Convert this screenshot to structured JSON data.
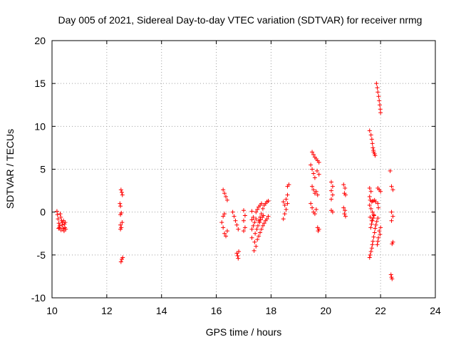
{
  "chart_data": {
    "type": "scatter",
    "title": "Day 005 of 2021, Sidereal Day-to-day VTEC variation (SDTVAR) for receiver nrmg",
    "xlabel": "GPS time / hours",
    "ylabel": "SDTVAR / TECUs",
    "xlim": [
      10,
      24
    ],
    "ylim": [
      -10,
      20
    ],
    "xticks": [
      "10",
      "12",
      "14",
      "16",
      "18",
      "20",
      "22",
      "24"
    ],
    "yticks": [
      "-10",
      "-5",
      "0",
      "5",
      "10",
      "15",
      "20"
    ],
    "grid": true,
    "marker": "+",
    "marker_color": "#ff0000",
    "series": [
      {
        "name": "SDTVAR",
        "points": [
          [
            10.18,
            0.1
          ],
          [
            10.2,
            -0.3
          ],
          [
            10.22,
            -0.8
          ],
          [
            10.25,
            -1.3
          ],
          [
            10.27,
            -1.8
          ],
          [
            10.3,
            -0.2
          ],
          [
            10.32,
            -0.6
          ],
          [
            10.35,
            -1.0
          ],
          [
            10.37,
            -1.5
          ],
          [
            10.4,
            -1.9
          ],
          [
            10.42,
            -1.0
          ],
          [
            10.45,
            -1.4
          ],
          [
            10.47,
            -1.8
          ],
          [
            10.5,
            -2.0
          ],
          [
            10.38,
            -1.2
          ],
          [
            10.28,
            -1.6
          ],
          [
            10.33,
            -2.1
          ],
          [
            10.24,
            -1.9
          ],
          [
            10.44,
            -2.2
          ],
          [
            10.48,
            -1.2
          ],
          [
            12.48,
            1.0
          ],
          [
            12.5,
            0.7
          ],
          [
            12.52,
            2.6
          ],
          [
            12.55,
            2.3
          ],
          [
            12.57,
            2.0
          ],
          [
            12.5,
            -0.3
          ],
          [
            12.53,
            -0.1
          ],
          [
            12.5,
            -1.5
          ],
          [
            12.53,
            -1.8
          ],
          [
            12.56,
            -1.2
          ],
          [
            12.5,
            -2.0
          ],
          [
            12.52,
            -5.8
          ],
          [
            12.55,
            -5.5
          ],
          [
            12.58,
            -5.3
          ],
          [
            16.25,
            2.6
          ],
          [
            16.3,
            2.2
          ],
          [
            16.35,
            1.8
          ],
          [
            16.4,
            1.4
          ],
          [
            16.2,
            -1.2
          ],
          [
            16.25,
            -1.8
          ],
          [
            16.3,
            -2.5
          ],
          [
            16.35,
            -2.8
          ],
          [
            16.4,
            -2.2
          ],
          [
            16.25,
            -0.5
          ],
          [
            16.3,
            -0.2
          ],
          [
            16.6,
            0.0
          ],
          [
            16.65,
            -0.5
          ],
          [
            16.7,
            -1.0
          ],
          [
            16.75,
            -1.5
          ],
          [
            16.8,
            -2.0
          ],
          [
            16.75,
            -4.8
          ],
          [
            16.78,
            -5.1
          ],
          [
            16.8,
            -5.4
          ],
          [
            16.82,
            -4.6
          ],
          [
            17.0,
            0.2
          ],
          [
            17.05,
            -0.4
          ],
          [
            17.0,
            -1.0
          ],
          [
            17.05,
            -1.8
          ],
          [
            17.0,
            -2.2
          ],
          [
            17.3,
            0.1
          ],
          [
            17.35,
            -0.6
          ],
          [
            17.3,
            -0.9
          ],
          [
            17.35,
            -1.6
          ],
          [
            17.3,
            -2.0
          ],
          [
            17.3,
            -3.0
          ],
          [
            17.4,
            -3.5
          ],
          [
            17.45,
            -4.0
          ],
          [
            17.5,
            -3.2
          ],
          [
            17.55,
            -2.8
          ],
          [
            17.6,
            -2.4
          ],
          [
            17.65,
            -2.0
          ],
          [
            17.7,
            -1.6
          ],
          [
            17.75,
            -1.3
          ],
          [
            17.8,
            -1.0
          ],
          [
            17.85,
            -0.8
          ],
          [
            17.9,
            -0.5
          ],
          [
            17.38,
            -4.5
          ],
          [
            17.42,
            -2.5
          ],
          [
            17.48,
            -2.0
          ],
          [
            17.52,
            -1.6
          ],
          [
            17.58,
            -1.2
          ],
          [
            17.62,
            -0.9
          ],
          [
            17.68,
            -0.6
          ],
          [
            17.72,
            -0.4
          ],
          [
            17.45,
            0.0
          ],
          [
            17.5,
            0.3
          ],
          [
            17.55,
            0.6
          ],
          [
            17.6,
            0.8
          ],
          [
            17.65,
            1.0
          ],
          [
            17.7,
            0.4
          ],
          [
            17.75,
            0.8
          ],
          [
            17.8,
            1.0
          ],
          [
            17.85,
            1.2
          ],
          [
            17.9,
            1.3
          ],
          [
            17.55,
            -1.0
          ],
          [
            17.6,
            -0.6
          ],
          [
            17.65,
            -0.2
          ],
          [
            17.4,
            -1.2
          ],
          [
            17.45,
            -0.8
          ],
          [
            18.45,
            1.2
          ],
          [
            18.5,
            0.8
          ],
          [
            18.55,
            1.5
          ],
          [
            18.6,
            2.0
          ],
          [
            18.5,
            -0.2
          ],
          [
            18.55,
            0.3
          ],
          [
            18.6,
            3.0
          ],
          [
            18.65,
            3.2
          ],
          [
            18.45,
            -0.8
          ],
          [
            18.6,
            1.0
          ],
          [
            19.45,
            5.5
          ],
          [
            19.5,
            5.0
          ],
          [
            19.55,
            4.5
          ],
          [
            19.6,
            4.0
          ],
          [
            19.5,
            7.0
          ],
          [
            19.55,
            6.7
          ],
          [
            19.6,
            6.4
          ],
          [
            19.65,
            6.2
          ],
          [
            19.7,
            6.0
          ],
          [
            19.75,
            5.8
          ],
          [
            19.5,
            3.0
          ],
          [
            19.55,
            2.6
          ],
          [
            19.6,
            2.2
          ],
          [
            19.65,
            2.4
          ],
          [
            19.7,
            2.0
          ],
          [
            19.45,
            1.0
          ],
          [
            19.5,
            0.5
          ],
          [
            19.55,
            0.0
          ],
          [
            19.6,
            -0.2
          ],
          [
            19.65,
            0.3
          ],
          [
            19.7,
            -1.8
          ],
          [
            19.75,
            -2.0
          ],
          [
            19.72,
            -2.2
          ],
          [
            19.68,
            4.8
          ],
          [
            19.75,
            4.4
          ],
          [
            20.2,
            3.5
          ],
          [
            20.25,
            3.0
          ],
          [
            20.2,
            2.5
          ],
          [
            20.25,
            2.0
          ],
          [
            20.2,
            1.5
          ],
          [
            20.2,
            0.2
          ],
          [
            20.25,
            0.0
          ],
          [
            20.65,
            3.2
          ],
          [
            20.7,
            2.8
          ],
          [
            20.68,
            2.2
          ],
          [
            20.72,
            2.0
          ],
          [
            20.65,
            0.5
          ],
          [
            20.7,
            0.2
          ],
          [
            20.68,
            -0.2
          ],
          [
            20.72,
            -0.5
          ],
          [
            21.6,
            9.5
          ],
          [
            21.65,
            9.0
          ],
          [
            21.68,
            8.5
          ],
          [
            21.7,
            8.0
          ],
          [
            21.72,
            7.5
          ],
          [
            21.75,
            7.0
          ],
          [
            21.78,
            6.8
          ],
          [
            21.8,
            6.6
          ],
          [
            21.74,
            7.2
          ],
          [
            21.6,
            2.8
          ],
          [
            21.65,
            2.4
          ],
          [
            21.6,
            1.8
          ],
          [
            21.62,
            1.4
          ],
          [
            21.68,
            1.2
          ],
          [
            21.72,
            1.3
          ],
          [
            21.78,
            1.4
          ],
          [
            21.82,
            1.2
          ],
          [
            21.6,
            0.8
          ],
          [
            21.65,
            0.4
          ],
          [
            21.7,
            0.0
          ],
          [
            21.75,
            -0.3
          ],
          [
            21.62,
            -0.6
          ],
          [
            21.68,
            -1.0
          ],
          [
            21.6,
            -5.3
          ],
          [
            21.62,
            -5.0
          ],
          [
            21.65,
            -4.6
          ],
          [
            21.68,
            -4.2
          ],
          [
            21.7,
            -3.8
          ],
          [
            21.72,
            -3.4
          ],
          [
            21.75,
            -2.9
          ],
          [
            21.78,
            -2.4
          ],
          [
            21.8,
            -1.9
          ],
          [
            21.83,
            -1.5
          ],
          [
            21.86,
            -1.1
          ],
          [
            21.9,
            -0.7
          ],
          [
            21.64,
            -1.8
          ],
          [
            21.67,
            -1.4
          ],
          [
            21.7,
            -1.0
          ],
          [
            21.73,
            -0.7
          ],
          [
            21.76,
            -0.4
          ],
          [
            21.85,
            15.0
          ],
          [
            21.88,
            14.5
          ],
          [
            21.9,
            14.0
          ],
          [
            21.93,
            13.5
          ],
          [
            21.95,
            13.0
          ],
          [
            21.97,
            12.5
          ],
          [
            21.99,
            12.0
          ],
          [
            22.0,
            11.6
          ],
          [
            21.9,
            2.8
          ],
          [
            21.95,
            2.6
          ],
          [
            22.0,
            2.4
          ],
          [
            21.9,
            1.0
          ],
          [
            21.92,
            0.5
          ],
          [
            21.95,
            -2.2
          ],
          [
            21.98,
            -2.6
          ],
          [
            21.92,
            -3.0
          ],
          [
            21.9,
            -3.4
          ],
          [
            22.0,
            -1.8
          ],
          [
            21.88,
            -3.8
          ],
          [
            22.35,
            4.8
          ],
          [
            22.4,
            3.0
          ],
          [
            22.45,
            2.6
          ],
          [
            22.4,
            0.0
          ],
          [
            22.45,
            -0.5
          ],
          [
            22.4,
            -1.0
          ],
          [
            22.45,
            -3.5
          ],
          [
            22.42,
            -3.7
          ],
          [
            22.38,
            -7.3
          ],
          [
            22.4,
            -7.6
          ],
          [
            22.42,
            -7.8
          ]
        ]
      }
    ]
  }
}
